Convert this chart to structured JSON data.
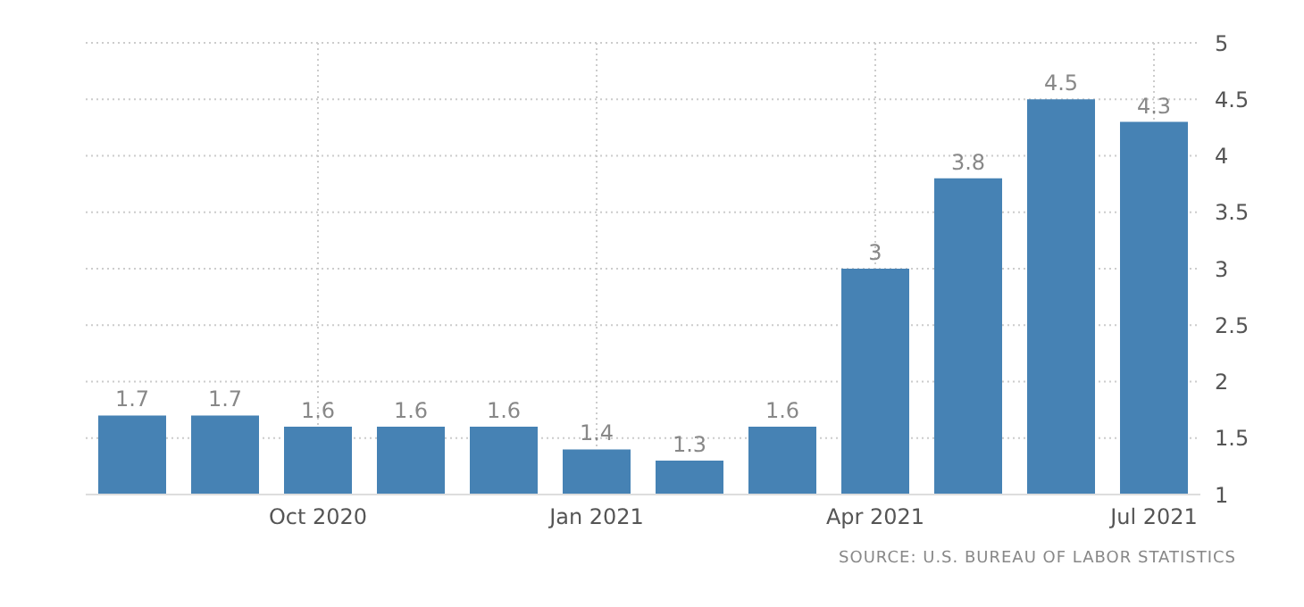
{
  "chart_data": {
    "type": "bar",
    "categories": [
      null,
      null,
      "Oct 2020",
      null,
      null,
      "Jan 2021",
      null,
      null,
      "Apr 2021",
      null,
      null,
      "Jul 2021"
    ],
    "values": [
      1.7,
      1.7,
      1.6,
      1.6,
      1.6,
      1.4,
      1.3,
      1.6,
      3,
      3.8,
      4.5,
      4.3
    ],
    "color": "#4682b4",
    "ylim": [
      1,
      5
    ],
    "yticks": [
      1,
      1.5,
      2,
      2.5,
      3,
      3.5,
      4,
      4.5,
      5
    ],
    "grid": true,
    "data_labels": true,
    "annotations": [
      "SOURCE: U.S. BUREAU OF LABOR STATISTICS"
    ]
  }
}
